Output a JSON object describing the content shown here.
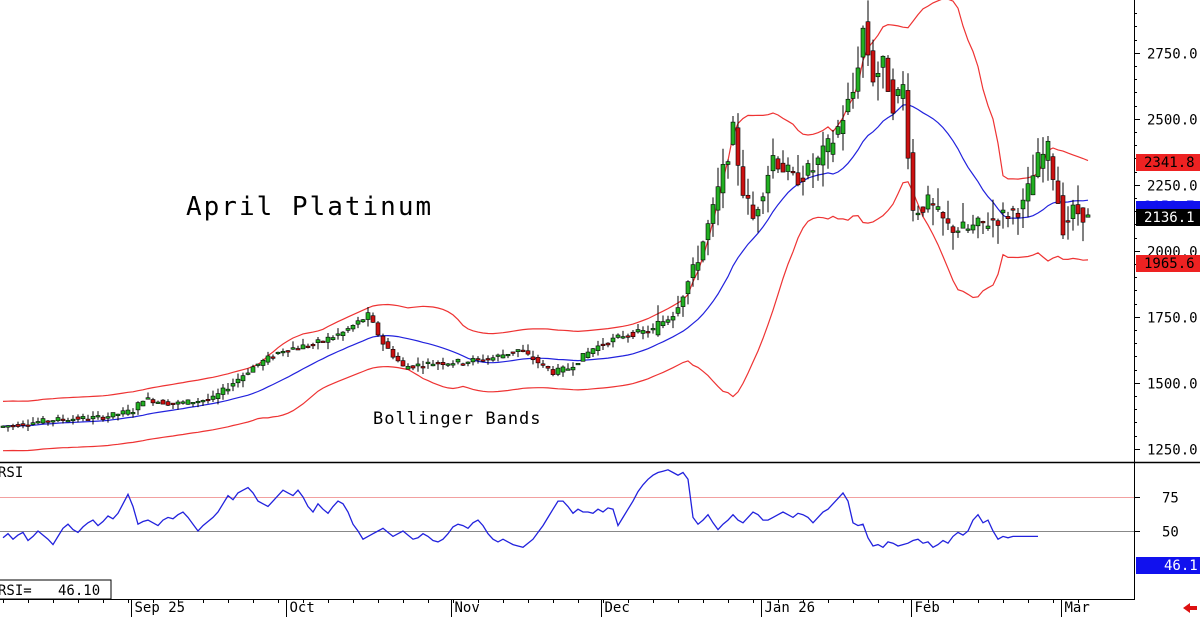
{
  "chart_data": [
    {
      "type": "candlestick",
      "title": "April Platinum",
      "annotation": "Bollinger Bands",
      "ylim": [
        1200,
        2950
      ],
      "y_ticks": [
        1250.0,
        1500.0,
        1750.0,
        2000.0,
        2250.0,
        2500.0,
        2750.0
      ],
      "y_tick_labels": [
        "1250.0",
        "1500.0",
        "1750.0",
        "2000.0",
        "2250.0",
        "2500.0",
        "2750.0"
      ],
      "x_month_labels": [
        "Sep 25",
        "Oct",
        "Nov",
        "Dec",
        "Jan 26",
        "Feb",
        "Mar"
      ],
      "x_month_bar_index": [
        26,
        57,
        90,
        120,
        152,
        182,
        212
      ],
      "num_bars": 218,
      "price_key": [
        [
          0,
          1335
        ],
        [
          10,
          1360
        ],
        [
          20,
          1370
        ],
        [
          26,
          1395
        ],
        [
          28,
          1440
        ],
        [
          34,
          1420
        ],
        [
          42,
          1440
        ],
        [
          50,
          1560
        ],
        [
          56,
          1625
        ],
        [
          62,
          1645
        ],
        [
          68,
          1690
        ],
        [
          73,
          1755
        ],
        [
          76,
          1650
        ],
        [
          80,
          1560
        ],
        [
          86,
          1575
        ],
        [
          92,
          1580
        ],
        [
          98,
          1595
        ],
        [
          103,
          1625
        ],
        [
          106,
          1590
        ],
        [
          110,
          1540
        ],
        [
          113,
          1555
        ],
        [
          118,
          1630
        ],
        [
          124,
          1680
        ],
        [
          130,
          1700
        ],
        [
          134,
          1770
        ],
        [
          138,
          1920
        ],
        [
          142,
          2150
        ],
        [
          146,
          2450
        ],
        [
          148,
          2230
        ],
        [
          150,
          2120
        ],
        [
          154,
          2360
        ],
        [
          158,
          2270
        ],
        [
          162,
          2310
        ],
        [
          166,
          2420
        ],
        [
          170,
          2600
        ],
        [
          172,
          2840
        ],
        [
          174,
          2660
        ],
        [
          176,
          2700
        ],
        [
          178,
          2560
        ],
        [
          180,
          2620
        ],
        [
          182,
          2150
        ],
        [
          185,
          2180
        ],
        [
          189,
          2090
        ],
        [
          193,
          2080
        ],
        [
          197,
          2110
        ],
        [
          201,
          2140
        ],
        [
          204,
          2170
        ],
        [
          207,
          2340
        ],
        [
          209,
          2380
        ],
        [
          210,
          2290
        ],
        [
          212,
          2090
        ],
        [
          214,
          2150
        ],
        [
          216,
          2140
        ],
        [
          217,
          2136
        ]
      ],
      "current_price": 2136.1,
      "current_price_label": "2136.1",
      "middle_band_label": "2153.7",
      "upper_band": 2341.8,
      "upper_band_label": "2341.8",
      "lower_band": 1965.6,
      "lower_band_label": "1965.6",
      "colors": {
        "up_candle": "#22b022",
        "down_candle": "#cc1111",
        "bollinger_outer": "#ee3333",
        "bollinger_middle": "#2222dd",
        "current_price_box": "#000000",
        "band_box": "#ee2222",
        "middle_box": "#1111ee"
      }
    },
    {
      "type": "line",
      "title": "RSI",
      "ylim": [
        0,
        100
      ],
      "y_ticks": [
        50,
        75
      ],
      "y_tick_labels": [
        "50",
        "75"
      ],
      "current_value": 46.1,
      "current_value_label": "46.1",
      "readout_label": "RSI=",
      "readout_value": "46.10",
      "reference_line": 75,
      "series": [
        {
          "values": [
            45,
            48,
            44,
            47,
            49,
            43,
            46,
            50,
            47,
            44,
            40,
            46,
            52,
            55,
            51,
            49,
            53,
            56,
            58,
            54,
            57,
            61,
            59,
            63,
            70,
            77,
            68,
            55,
            57,
            58,
            56,
            54,
            58,
            60,
            59,
            62,
            64,
            60,
            55,
            50,
            54,
            57,
            60,
            64,
            70,
            76,
            73,
            78,
            80,
            82,
            78,
            72,
            70,
            68,
            72,
            76,
            80,
            78,
            76,
            80,
            75,
            68,
            64,
            70,
            66,
            63,
            68,
            72,
            70,
            64,
            55,
            50,
            44,
            46,
            48,
            50,
            52,
            49,
            46,
            48,
            50,
            47,
            44,
            45,
            48,
            46,
            43,
            42,
            44,
            48,
            53,
            55,
            54,
            52,
            56,
            58,
            54,
            48,
            44,
            42,
            44,
            42,
            40,
            39,
            38,
            41,
            44,
            49,
            54,
            60,
            66,
            72,
            72,
            68,
            63,
            66,
            64,
            64,
            63,
            66,
            64,
            67,
            66,
            54,
            60,
            66,
            72,
            79,
            84,
            88,
            91,
            93,
            94,
            95,
            93,
            91,
            93,
            88,
            60,
            55,
            58,
            62,
            56,
            51,
            55,
            58,
            62,
            58,
            56,
            60,
            64,
            62,
            58,
            58,
            60,
            62,
            64,
            62,
            60,
            63,
            62,
            60,
            56,
            60,
            64,
            66,
            70,
            74,
            78,
            72,
            56,
            54,
            55,
            45,
            39,
            40,
            38,
            42,
            41,
            39,
            40,
            41,
            43,
            44,
            41,
            42,
            38,
            40,
            43,
            41,
            46,
            49,
            47,
            50,
            58,
            62,
            56,
            58,
            50,
            44,
            46,
            45,
            46,
            46,
            46,
            46,
            46,
            46
          ]
        }
      ]
    }
  ]
}
